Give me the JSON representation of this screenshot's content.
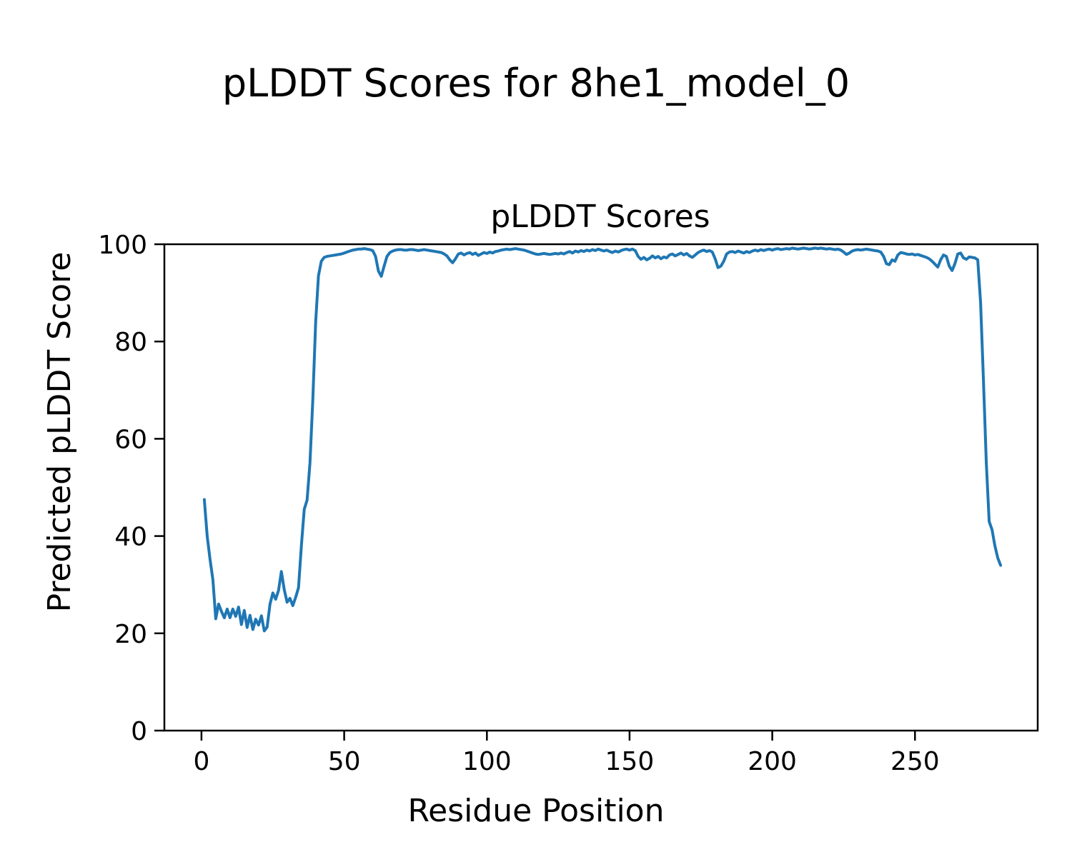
{
  "chart_data": {
    "type": "line",
    "suptitle": "pLDDT Scores for 8he1_model_0",
    "title": "pLDDT Scores",
    "xlabel": "Residue Position",
    "ylabel": "Predicted pLDDT Score",
    "grid": false,
    "legend": "none",
    "line_color": "#1f77b4",
    "axis_color": "#000000",
    "line_width": 4,
    "xlim": [
      -13,
      293
    ],
    "ylim": [
      0,
      100
    ],
    "x_ticks": [
      0,
      50,
      100,
      150,
      200,
      250
    ],
    "y_ticks": [
      0,
      20,
      40,
      60,
      80,
      100
    ],
    "series_name": "pLDDT",
    "x_start": 1,
    "x_step": 1,
    "values": [
      47.5,
      40.0,
      35.2,
      31.0,
      23.0,
      26.0,
      24.5,
      23.2,
      25.0,
      23.2,
      25.0,
      23.5,
      25.4,
      21.8,
      24.7,
      21.2,
      23.7,
      20.8,
      22.9,
      21.7,
      23.6,
      20.5,
      21.3,
      26.0,
      28.3,
      27.0,
      28.8,
      32.7,
      29.0,
      26.4,
      27.2,
      25.7,
      27.4,
      29.4,
      38.0,
      45.5,
      47.4,
      55.0,
      68.0,
      84.0,
      93.5,
      96.5,
      97.3,
      97.5,
      97.6,
      97.7,
      97.8,
      97.9,
      98.0,
      98.2,
      98.4,
      98.6,
      98.8,
      98.9,
      99.0,
      99.0,
      99.1,
      99.0,
      98.9,
      98.7,
      97.5,
      94.5,
      93.4,
      95.5,
      97.5,
      98.3,
      98.6,
      98.8,
      98.9,
      98.9,
      98.8,
      98.8,
      98.9,
      98.9,
      98.8,
      98.7,
      98.8,
      98.9,
      98.8,
      98.7,
      98.6,
      98.5,
      98.4,
      98.3,
      98.0,
      97.6,
      96.8,
      96.2,
      97.0,
      98.0,
      98.2,
      97.8,
      98.1,
      98.3,
      97.9,
      98.2,
      97.7,
      98.0,
      98.3,
      98.1,
      98.4,
      98.2,
      98.5,
      98.6,
      98.8,
      98.9,
      99.0,
      98.9,
      99.0,
      99.1,
      99.0,
      98.9,
      98.8,
      98.6,
      98.4,
      98.2,
      98.0,
      97.9,
      98.0,
      98.1,
      98.0,
      97.9,
      98.0,
      98.1,
      98.0,
      98.2,
      98.0,
      98.3,
      98.5,
      98.2,
      98.6,
      98.4,
      98.7,
      98.5,
      98.8,
      98.6,
      98.9,
      98.7,
      99.0,
      98.8,
      98.6,
      98.8,
      98.5,
      98.3,
      98.6,
      98.4,
      98.7,
      98.9,
      99.0,
      98.8,
      99.0,
      98.7,
      97.5,
      96.9,
      97.3,
      96.8,
      97.1,
      97.6,
      97.2,
      97.5,
      97.0,
      97.4,
      97.2,
      97.8,
      98.0,
      97.6,
      97.9,
      98.2,
      97.8,
      98.1,
      97.6,
      97.3,
      97.8,
      98.3,
      98.6,
      98.8,
      98.5,
      98.7,
      98.4,
      97.0,
      95.2,
      95.5,
      96.5,
      98.0,
      98.4,
      98.5,
      98.3,
      98.6,
      98.4,
      98.2,
      98.5,
      98.3,
      98.6,
      98.8,
      98.6,
      98.9,
      98.7,
      98.9,
      99.0,
      98.8,
      99.0,
      99.1,
      98.9,
      99.0,
      99.1,
      99.0,
      99.2,
      99.1,
      99.0,
      99.1,
      99.2,
      99.1,
      99.0,
      99.1,
      99.2,
      99.1,
      99.2,
      99.1,
      99.0,
      99.1,
      99.0,
      98.9,
      99.0,
      98.8,
      98.4,
      97.9,
      98.2,
      98.6,
      98.8,
      98.9,
      98.8,
      98.9,
      99.0,
      98.9,
      98.8,
      98.7,
      98.6,
      98.4,
      97.5,
      96.0,
      95.8,
      96.8,
      96.5,
      97.8,
      98.3,
      98.2,
      98.0,
      97.9,
      98.0,
      97.8,
      97.9,
      97.7,
      97.5,
      97.3,
      97.0,
      96.5,
      95.9,
      95.3,
      96.8,
      97.8,
      97.5,
      95.5,
      94.6,
      96.0,
      98.0,
      98.2,
      97.2,
      96.9,
      97.4,
      97.3,
      97.2,
      96.8,
      88.0,
      72.0,
      55.0,
      43.0,
      41.3,
      38.0,
      35.5,
      34.0
    ]
  }
}
